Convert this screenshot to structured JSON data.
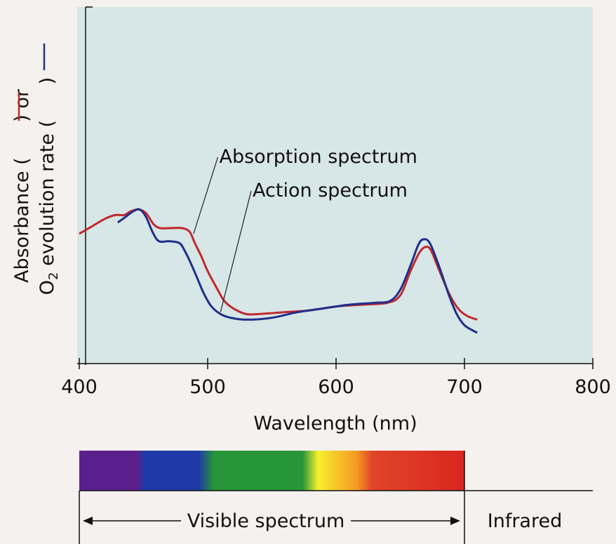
{
  "chart_data": {
    "type": "line",
    "xlabel": "Wavelength (nm)",
    "ylabel": {
      "line1_before": "Absorbance (",
      "line1_after": ") or",
      "line2_prefix": "O",
      "line2_sub": "2",
      "line2_middle": " evolution rate (",
      "line2_after": ")"
    },
    "xlim": [
      400,
      800
    ],
    "ylim": [
      0,
      1
    ],
    "x_ticks": [
      "400",
      "500",
      "600",
      "700",
      "800"
    ],
    "grid": false,
    "series": [
      {
        "key": "absorption",
        "color": "#c0282d",
        "points": [
          [
            400,
            0.5
          ],
          [
            410,
            0.54
          ],
          [
            420,
            0.58
          ],
          [
            428,
            0.6
          ],
          [
            435,
            0.6
          ],
          [
            440,
            0.62
          ],
          [
            446,
            0.63
          ],
          [
            452,
            0.61
          ],
          [
            458,
            0.55
          ],
          [
            463,
            0.53
          ],
          [
            470,
            0.53
          ],
          [
            480,
            0.53
          ],
          [
            486,
            0.51
          ],
          [
            490,
            0.45
          ],
          [
            495,
            0.38
          ],
          [
            500,
            0.3
          ],
          [
            507,
            0.21
          ],
          [
            513,
            0.14
          ],
          [
            520,
            0.1
          ],
          [
            530,
            0.07
          ],
          [
            540,
            0.07
          ],
          [
            560,
            0.08
          ],
          [
            580,
            0.09
          ],
          [
            600,
            0.11
          ],
          [
            620,
            0.12
          ],
          [
            640,
            0.13
          ],
          [
            650,
            0.17
          ],
          [
            658,
            0.3
          ],
          [
            665,
            0.4
          ],
          [
            670,
            0.43
          ],
          [
            674,
            0.41
          ],
          [
            680,
            0.31
          ],
          [
            688,
            0.18
          ],
          [
            695,
            0.1
          ],
          [
            702,
            0.06
          ],
          [
            710,
            0.04
          ]
        ]
      },
      {
        "key": "action",
        "color": "#1f2f8a",
        "points": [
          [
            430,
            0.56
          ],
          [
            436,
            0.59
          ],
          [
            442,
            0.62
          ],
          [
            447,
            0.63
          ],
          [
            452,
            0.59
          ],
          [
            457,
            0.51
          ],
          [
            462,
            0.46
          ],
          [
            470,
            0.46
          ],
          [
            478,
            0.45
          ],
          [
            482,
            0.41
          ],
          [
            487,
            0.34
          ],
          [
            492,
            0.26
          ],
          [
            497,
            0.18
          ],
          [
            503,
            0.11
          ],
          [
            510,
            0.07
          ],
          [
            518,
            0.05
          ],
          [
            530,
            0.04
          ],
          [
            550,
            0.05
          ],
          [
            570,
            0.08
          ],
          [
            590,
            0.1
          ],
          [
            610,
            0.12
          ],
          [
            630,
            0.13
          ],
          [
            642,
            0.14
          ],
          [
            650,
            0.2
          ],
          [
            658,
            0.33
          ],
          [
            664,
            0.44
          ],
          [
            668,
            0.47
          ],
          [
            673,
            0.45
          ],
          [
            680,
            0.33
          ],
          [
            688,
            0.17
          ],
          [
            694,
            0.07
          ],
          [
            700,
            0.01
          ],
          [
            707,
            -0.02
          ],
          [
            710,
            -0.03
          ]
        ]
      }
    ],
    "annotations": [
      {
        "text": "Absorption spectrum",
        "x": 509,
        "y": 0.88,
        "target": [
          489,
          0.5
        ]
      },
      {
        "text": "Action spectrum",
        "x": 535,
        "y": 0.7,
        "target": [
          510,
          0.08
        ]
      }
    ]
  },
  "spectrum_bar": {
    "colors": [
      "#5b1f8e",
      "#5b1f8e",
      "#1f3aa8",
      "#1f3aa8",
      "#27963a",
      "#27963a",
      "#f7ef2e",
      "#f59a23",
      "#e0452a",
      "#d9261f"
    ],
    "visible_label": "Visible spectrum",
    "infrared_label": "Infrared"
  }
}
